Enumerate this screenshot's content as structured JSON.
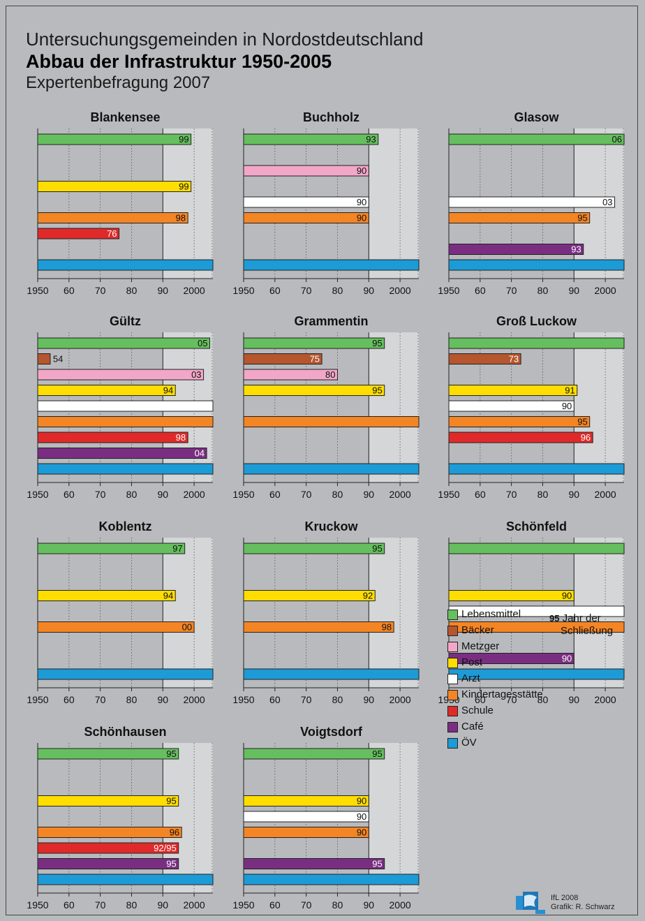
{
  "header": {
    "line1": "Untersuchungsgemeinden in Nordostdeutschland",
    "line2": "Abbau der Infrastruktur 1950-2005",
    "line3": "Expertenbefragung 2007"
  },
  "colors": {
    "Lebensmittel": "#66bf5e",
    "Bäcker": "#b5562e",
    "Metzger": "#f2a7c8",
    "Post": "#ffdd00",
    "Arzt": "#ffffff",
    "Kindertagesstätte": "#f48524",
    "Schule": "#e02a2a",
    "Café": "#7a2e82",
    "ÖV": "#1d9bd6"
  },
  "chart_data": [
    {
      "type": "bar",
      "title": "Blankensee",
      "xlim": [
        1950,
        2006
      ],
      "xticks": [
        "1950",
        "60",
        "70",
        "80",
        "90",
        "2000"
      ],
      "shaded_from": 1990,
      "bars": [
        {
          "category": "Lebensmittel",
          "row": 0,
          "end": 1999,
          "label": "99"
        },
        {
          "category": "Post",
          "row": 3,
          "end": 1999,
          "label": "99"
        },
        {
          "category": "Kindertagesstätte",
          "row": 5,
          "end": 1998,
          "label": "98"
        },
        {
          "category": "Schule",
          "row": 6,
          "end": 1976,
          "label": "76"
        },
        {
          "category": "ÖV",
          "row": 8,
          "end": 2006,
          "label": ""
        }
      ]
    },
    {
      "type": "bar",
      "title": "Buchholz",
      "xlim": [
        1950,
        2006
      ],
      "xticks": [
        "1950",
        "60",
        "70",
        "80",
        "90",
        "2000"
      ],
      "shaded_from": 1990,
      "bars": [
        {
          "category": "Lebensmittel",
          "row": 0,
          "end": 1993,
          "label": "93"
        },
        {
          "category": "Metzger",
          "row": 2,
          "end": 1990,
          "label": "90"
        },
        {
          "category": "Arzt",
          "row": 4,
          "end": 1990,
          "label": "90"
        },
        {
          "category": "Kindertagesstätte",
          "row": 5,
          "end": 1990,
          "label": "90"
        },
        {
          "category": "ÖV",
          "row": 8,
          "end": 2006,
          "label": ""
        }
      ]
    },
    {
      "type": "bar",
      "title": "Glasow",
      "xlim": [
        1950,
        2006
      ],
      "xticks": [
        "1950",
        "60",
        "70",
        "80",
        "90",
        "2000"
      ],
      "shaded_from": 1990,
      "bars": [
        {
          "category": "Lebensmittel",
          "row": 0,
          "end": 2006,
          "label": "06"
        },
        {
          "category": "Arzt",
          "row": 4,
          "end": 2003,
          "label": "03"
        },
        {
          "category": "Kindertagesstätte",
          "row": 5,
          "end": 1995,
          "label": "95"
        },
        {
          "category": "Café",
          "row": 7,
          "end": 1993,
          "label": "93"
        },
        {
          "category": "ÖV",
          "row": 8,
          "end": 2006,
          "label": ""
        }
      ]
    },
    {
      "type": "bar",
      "title": "Gültz",
      "xlim": [
        1950,
        2006
      ],
      "xticks": [
        "1950",
        "60",
        "70",
        "80",
        "90",
        "2000"
      ],
      "shaded_from": 1990,
      "bars": [
        {
          "category": "Lebensmittel",
          "row": 0,
          "end": 2005,
          "label": "05"
        },
        {
          "category": "Bäcker",
          "row": 1,
          "end": 1954,
          "label": "54"
        },
        {
          "category": "Metzger",
          "row": 2,
          "end": 2003,
          "label": "03"
        },
        {
          "category": "Post",
          "row": 3,
          "end": 1994,
          "label": "94"
        },
        {
          "category": "Arzt",
          "row": 4,
          "end": 2006,
          "label": ""
        },
        {
          "category": "Kindertagesstätte",
          "row": 5,
          "end": 2006,
          "label": ""
        },
        {
          "category": "Schule",
          "row": 6,
          "end": 1998,
          "label": "98"
        },
        {
          "category": "Café",
          "row": 7,
          "end": 2004,
          "label": "04"
        },
        {
          "category": "ÖV",
          "row": 8,
          "end": 2006,
          "label": ""
        }
      ]
    },
    {
      "type": "bar",
      "title": "Grammentin",
      "xlim": [
        1950,
        2006
      ],
      "xticks": [
        "1950",
        "60",
        "70",
        "80",
        "90",
        "2000"
      ],
      "shaded_from": 1990,
      "bars": [
        {
          "category": "Lebensmittel",
          "row": 0,
          "end": 1995,
          "label": "95"
        },
        {
          "category": "Bäcker",
          "row": 1,
          "end": 1975,
          "label": "75"
        },
        {
          "category": "Metzger",
          "row": 2,
          "end": 1980,
          "label": "80"
        },
        {
          "category": "Post",
          "row": 3,
          "end": 1995,
          "label": "95"
        },
        {
          "category": "Kindertagesstätte",
          "row": 5,
          "end": 2006,
          "label": ""
        },
        {
          "category": "ÖV",
          "row": 8,
          "end": 2006,
          "label": ""
        }
      ]
    },
    {
      "type": "bar",
      "title": "Groß Luckow",
      "xlim": [
        1950,
        2006
      ],
      "xticks": [
        "1950",
        "60",
        "70",
        "80",
        "90",
        "2000"
      ],
      "shaded_from": 1990,
      "bars": [
        {
          "category": "Lebensmittel",
          "row": 0,
          "end": 2006,
          "label": ""
        },
        {
          "category": "Bäcker",
          "row": 1,
          "end": 1973,
          "label": "73"
        },
        {
          "category": "Post",
          "row": 3,
          "end": 1991,
          "label": "91"
        },
        {
          "category": "Arzt",
          "row": 4,
          "end": 1990,
          "label": "90"
        },
        {
          "category": "Kindertagesstätte",
          "row": 5,
          "end": 1995,
          "label": "95"
        },
        {
          "category": "Schule",
          "row": 6,
          "end": 1996,
          "label": "96"
        },
        {
          "category": "ÖV",
          "row": 8,
          "end": 2006,
          "label": ""
        }
      ]
    },
    {
      "type": "bar",
      "title": "Koblentz",
      "xlim": [
        1950,
        2006
      ],
      "xticks": [
        "1950",
        "60",
        "70",
        "80",
        "90",
        "2000"
      ],
      "shaded_from": 1990,
      "bars": [
        {
          "category": "Lebensmittel",
          "row": 0,
          "end": 1997,
          "label": "97"
        },
        {
          "category": "Post",
          "row": 3,
          "end": 1994,
          "label": "94"
        },
        {
          "category": "Kindertagesstätte",
          "row": 5,
          "end": 2000,
          "label": "00"
        },
        {
          "category": "ÖV",
          "row": 8,
          "end": 2006,
          "label": ""
        }
      ]
    },
    {
      "type": "bar",
      "title": "Kruckow",
      "xlim": [
        1950,
        2006
      ],
      "xticks": [
        "1950",
        "60",
        "70",
        "80",
        "90",
        "2000"
      ],
      "shaded_from": 1990,
      "bars": [
        {
          "category": "Lebensmittel",
          "row": 0,
          "end": 1995,
          "label": "95"
        },
        {
          "category": "Post",
          "row": 3,
          "end": 1992,
          "label": "92"
        },
        {
          "category": "Kindertagesstätte",
          "row": 5,
          "end": 1998,
          "label": "98"
        },
        {
          "category": "ÖV",
          "row": 8,
          "end": 2006,
          "label": ""
        }
      ]
    },
    {
      "type": "bar",
      "title": "Schönfeld",
      "xlim": [
        1950,
        2006
      ],
      "xticks": [
        "1950",
        "60",
        "70",
        "80",
        "90",
        "2000"
      ],
      "shaded_from": 1990,
      "bars": [
        {
          "category": "Lebensmittel",
          "row": 0,
          "end": 2006,
          "label": ""
        },
        {
          "category": "Post",
          "row": 3,
          "end": 1990,
          "label": "90"
        },
        {
          "category": "Arzt",
          "row": 4,
          "end": 2006,
          "label": ""
        },
        {
          "category": "Kindertagesstätte",
          "row": 5,
          "end": 2006,
          "label": ""
        },
        {
          "category": "Café",
          "row": 7,
          "end": 1990,
          "label": "90"
        },
        {
          "category": "ÖV",
          "row": 8,
          "end": 2006,
          "label": ""
        }
      ]
    },
    {
      "type": "bar",
      "title": "Schönhausen",
      "xlim": [
        1950,
        2006
      ],
      "xticks": [
        "1950",
        "60",
        "70",
        "80",
        "90",
        "2000"
      ],
      "shaded_from": 1990,
      "bars": [
        {
          "category": "Lebensmittel",
          "row": 0,
          "end": 1995,
          "label": "95"
        },
        {
          "category": "Post",
          "row": 3,
          "end": 1995,
          "label": "95"
        },
        {
          "category": "Kindertagesstätte",
          "row": 5,
          "end": 1996,
          "label": "96"
        },
        {
          "category": "Schule",
          "row": 6,
          "end": 1995,
          "label": "92/95"
        },
        {
          "category": "Café",
          "row": 7,
          "end": 1995,
          "label": "95"
        },
        {
          "category": "ÖV",
          "row": 8,
          "end": 2006,
          "label": ""
        }
      ]
    },
    {
      "type": "bar",
      "title": "Voigtsdorf",
      "xlim": [
        1950,
        2006
      ],
      "xticks": [
        "1950",
        "60",
        "70",
        "80",
        "90",
        "2000"
      ],
      "shaded_from": 1990,
      "bars": [
        {
          "category": "Lebensmittel",
          "row": 0,
          "end": 1995,
          "label": "95"
        },
        {
          "category": "Post",
          "row": 3,
          "end": 1990,
          "label": "90"
        },
        {
          "category": "Arzt",
          "row": 4,
          "end": 1990,
          "label": "90"
        },
        {
          "category": "Kindertagesstätte",
          "row": 5,
          "end": 1990,
          "label": "90"
        },
        {
          "category": "Café",
          "row": 7,
          "end": 1995,
          "label": "95"
        },
        {
          "category": "ÖV",
          "row": 8,
          "end": 2006,
          "label": ""
        }
      ]
    }
  ],
  "legend": {
    "items": [
      "Lebensmittel",
      "Bäcker",
      "Metzger",
      "Post",
      "Arzt",
      "Kindertagesstätte",
      "Schule",
      "Café",
      "ÖV"
    ],
    "note_number": "95",
    "note_text1": "Jahr der",
    "note_text2": "Schließung"
  },
  "credit": {
    "line1": "IfL 2008",
    "line2": "Grafik: R. Schwarz"
  }
}
